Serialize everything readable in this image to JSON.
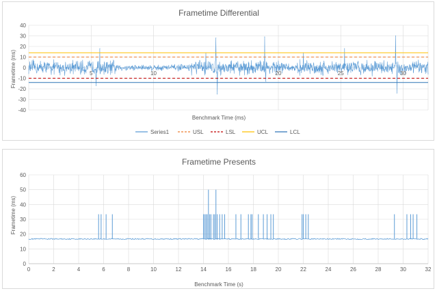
{
  "chart_data": [
    {
      "type": "line",
      "title": "Frametime Differential",
      "xlabel": "Benchmark Time (ms)",
      "ylabel": "Frametime (ms)",
      "ylim": [
        -40,
        40
      ],
      "y_ticks": [
        40,
        30,
        20,
        10,
        0,
        -10,
        -20,
        -30,
        -40
      ],
      "x_ticks": [
        {
          "label": "5",
          "value": 5
        },
        {
          "label": "10",
          "value": 10
        },
        {
          "label": "20",
          "value": 20
        },
        {
          "label": "25",
          "value": 25
        },
        {
          "label": "30",
          "value": 30
        }
      ],
      "xlim": [
        0,
        32
      ],
      "grid": true,
      "legend_position": "bottom",
      "legend": [
        {
          "name": "Series1",
          "color": "#5b9bd5",
          "style": "solid"
        },
        {
          "name": "USL",
          "color": "#ed7d31",
          "style": "dashed"
        },
        {
          "name": "LSL",
          "color": "#c00000",
          "style": "dashed"
        },
        {
          "name": "UCL",
          "color": "#ffc000",
          "style": "solid"
        },
        {
          "name": "LCL",
          "color": "#2e75b6",
          "style": "solid"
        }
      ],
      "reference_lines": [
        {
          "name": "USL",
          "value": 10,
          "color": "#ed7d31",
          "style": "dashed"
        },
        {
          "name": "LSL",
          "value": -10,
          "color": "#c00000",
          "style": "dashed"
        },
        {
          "name": "UCL",
          "value": 14,
          "color": "#ffc000",
          "style": "solid"
        },
        {
          "name": "LCL",
          "value": -14,
          "color": "#2e75b6",
          "style": "solid"
        }
      ],
      "series_summary": {
        "name": "Series1",
        "typical_amplitude": 7,
        "spikes": [
          {
            "x": 5.4,
            "y": -17
          },
          {
            "x": 5.7,
            "y": 18
          },
          {
            "x": 14.2,
            "y": 14
          },
          {
            "x": 15.0,
            "y": 28
          },
          {
            "x": 15.1,
            "y": -25
          },
          {
            "x": 18.9,
            "y": 29
          },
          {
            "x": 19.0,
            "y": -13
          },
          {
            "x": 22.0,
            "y": 14
          },
          {
            "x": 25.3,
            "y": 18
          },
          {
            "x": 29.4,
            "y": 30
          },
          {
            "x": 29.5,
            "y": -24
          }
        ]
      }
    },
    {
      "type": "line",
      "title": "Frametime Presents",
      "xlabel": "Benchmark Time (s)",
      "ylabel": "Frametime (ms)",
      "ylim": [
        0,
        60
      ],
      "xlim": [
        0,
        32
      ],
      "y_ticks": [
        0,
        10,
        20,
        30,
        40,
        50,
        60
      ],
      "x_ticks": [
        0,
        2,
        4,
        6,
        8,
        10,
        12,
        14,
        16,
        18,
        20,
        22,
        24,
        26,
        28,
        30,
        32
      ],
      "grid": true,
      "baseline": 16.7,
      "spikes": [
        {
          "x": 5.6,
          "y": 33.4
        },
        {
          "x": 5.8,
          "y": 33.4
        },
        {
          "x": 6.2,
          "y": 33.4
        },
        {
          "x": 6.7,
          "y": 33.4
        },
        {
          "x": 14.0,
          "y": 33.4
        },
        {
          "x": 14.1,
          "y": 33.4
        },
        {
          "x": 14.2,
          "y": 33.4
        },
        {
          "x": 14.3,
          "y": 33.4
        },
        {
          "x": 14.4,
          "y": 50.0
        },
        {
          "x": 14.5,
          "y": 33.4
        },
        {
          "x": 14.6,
          "y": 33.4
        },
        {
          "x": 14.8,
          "y": 33.4
        },
        {
          "x": 14.9,
          "y": 33.4
        },
        {
          "x": 15.0,
          "y": 50.0
        },
        {
          "x": 15.1,
          "y": 33.4
        },
        {
          "x": 15.3,
          "y": 33.4
        },
        {
          "x": 15.5,
          "y": 33.4
        },
        {
          "x": 15.7,
          "y": 33.4
        },
        {
          "x": 16.6,
          "y": 33.4
        },
        {
          "x": 17.0,
          "y": 33.4
        },
        {
          "x": 17.6,
          "y": 33.4
        },
        {
          "x": 17.8,
          "y": 33.4
        },
        {
          "x": 17.9,
          "y": 33.4
        },
        {
          "x": 18.4,
          "y": 33.4
        },
        {
          "x": 18.8,
          "y": 33.4
        },
        {
          "x": 19.1,
          "y": 33.4
        },
        {
          "x": 19.4,
          "y": 33.4
        },
        {
          "x": 19.6,
          "y": 33.4
        },
        {
          "x": 21.9,
          "y": 33.4
        },
        {
          "x": 22.0,
          "y": 33.4
        },
        {
          "x": 22.2,
          "y": 33.4
        },
        {
          "x": 22.4,
          "y": 33.4
        },
        {
          "x": 29.3,
          "y": 33.4
        },
        {
          "x": 30.3,
          "y": 33.4
        },
        {
          "x": 30.6,
          "y": 33.4
        },
        {
          "x": 30.8,
          "y": 33.4
        },
        {
          "x": 31.1,
          "y": 33.4
        }
      ]
    }
  ]
}
